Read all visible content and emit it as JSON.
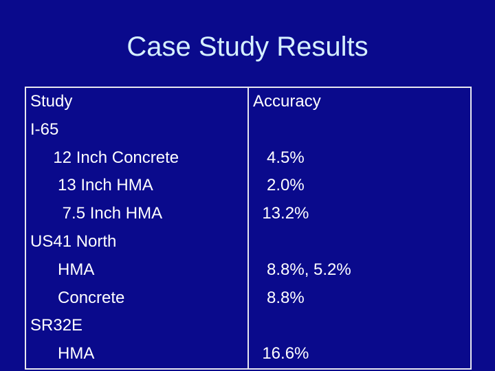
{
  "title": "Case Study Results",
  "table": {
    "study_lines": [
      "Study",
      "I-65",
      "     12 Inch Concrete",
      "      13 Inch HMA",
      "       7.5 Inch HMA",
      "US41 North",
      "      HMA",
      "      Concrete",
      "SR32E",
      "      HMA"
    ],
    "accuracy_lines": [
      "Accuracy",
      "",
      "   4.5%",
      "   2.0%",
      "  13.2%",
      "",
      "   8.8%, 5.2%",
      "   8.8%",
      "",
      "  16.6%"
    ]
  }
}
